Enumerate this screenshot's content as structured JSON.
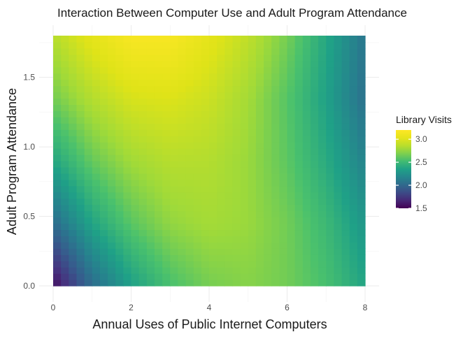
{
  "chart_data": {
    "type": "heatmap",
    "title": "Interaction Between Computer Use and Adult Program Attendance",
    "xlabel": "Annual Uses of Public Internet Computers",
    "ylabel": "Adult Program Attendance",
    "xlim": [
      0,
      8
    ],
    "ylim": [
      0,
      1.8
    ],
    "x_ticks": [
      {
        "value": 0,
        "label": "0"
      },
      {
        "value": 2,
        "label": "2"
      },
      {
        "value": 4,
        "label": "4"
      },
      {
        "value": 6,
        "label": "6"
      },
      {
        "value": 8,
        "label": "8"
      }
    ],
    "y_ticks": [
      {
        "value": 0.0,
        "label": "0.0"
      },
      {
        "value": 0.5,
        "label": "0.5"
      },
      {
        "value": 1.0,
        "label": "1.0"
      },
      {
        "value": 1.5,
        "label": "1.5"
      }
    ],
    "grid": true,
    "colorscale": "viridis",
    "legend": {
      "title": "Library Visits",
      "position": "right",
      "range": [
        1.5,
        3.2
      ],
      "ticks": [
        {
          "value": 1.5,
          "label": "1.5"
        },
        {
          "value": 2.0,
          "label": "2.0"
        },
        {
          "value": 2.5,
          "label": "2.5"
        },
        {
          "value": 3.0,
          "label": "3.0"
        }
      ]
    },
    "x": [
      0,
      1,
      2,
      3,
      4,
      5,
      6,
      7,
      8
    ],
    "y": [
      0,
      0.45,
      0.9,
      1.35,
      1.8
    ],
    "z": [
      [
        1.55,
        2.02,
        2.34,
        2.55,
        2.67,
        2.71,
        2.66,
        2.55,
        2.37
      ],
      [
        2.02,
        2.37,
        2.6,
        2.74,
        2.79,
        2.76,
        2.66,
        2.5,
        2.28
      ],
      [
        2.38,
        2.63,
        2.78,
        2.85,
        2.84,
        2.76,
        2.61,
        2.41,
        2.16
      ],
      [
        2.66,
        2.84,
        2.96,
        2.98,
        2.92,
        2.79,
        2.59,
        2.35,
        2.05
      ],
      [
        2.85,
        3.03,
        3.16,
        3.16,
        3.03,
        2.88,
        2.67,
        2.39,
        2.08
      ]
    ]
  }
}
